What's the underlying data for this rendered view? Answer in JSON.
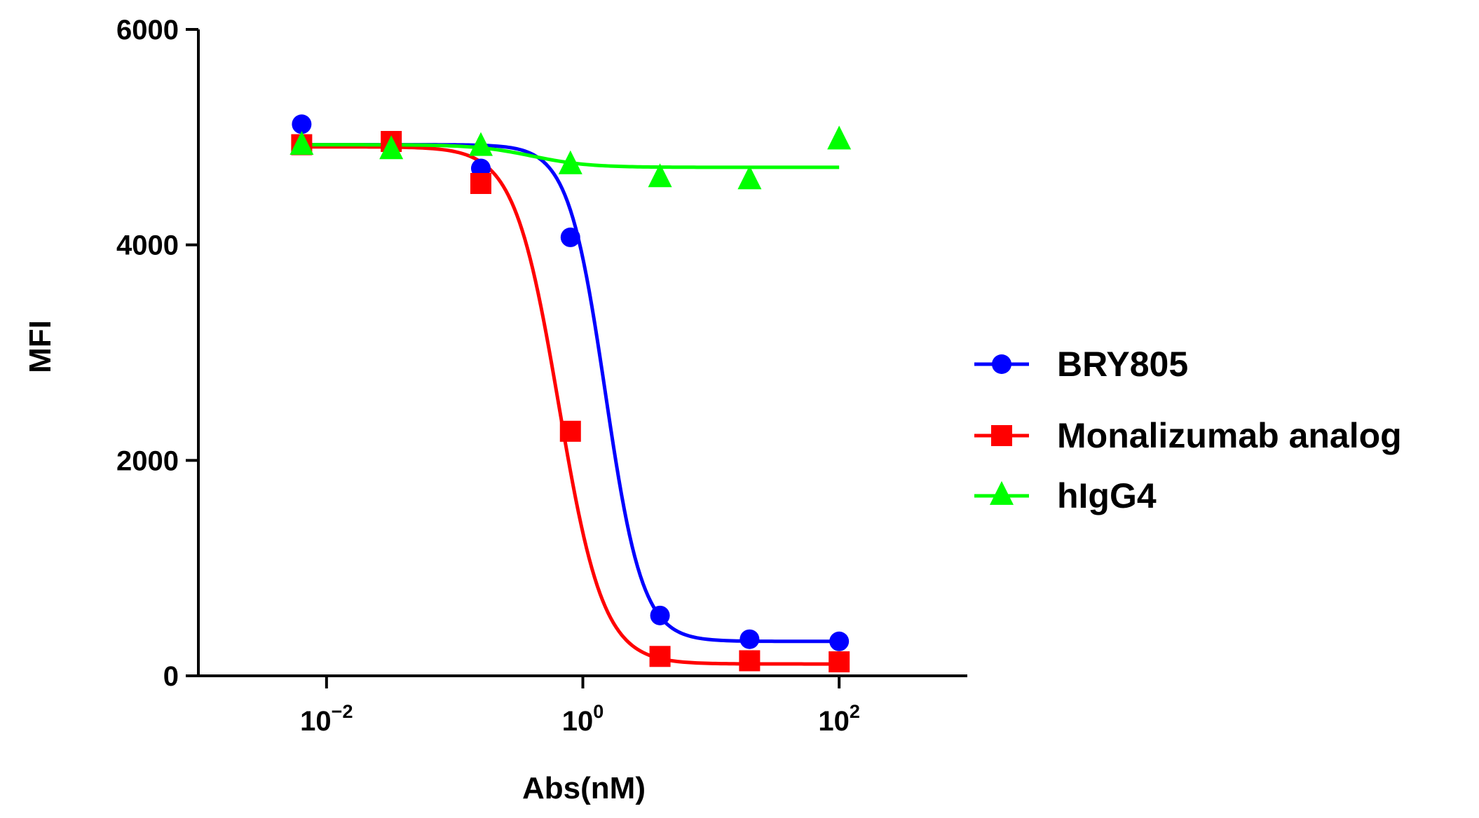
{
  "chart_data": {
    "type": "line",
    "xlabel": "Abs(nM)",
    "ylabel": "MFI",
    "xscale": "log",
    "xlim": [
      0.001,
      1000
    ],
    "ylim": [
      0,
      6000
    ],
    "x_ticks": [
      {
        "value": 0.01,
        "base": "10",
        "exp": "−2"
      },
      {
        "value": 1,
        "base": "10",
        "exp": "0"
      },
      {
        "value": 100,
        "base": "10",
        "exp": "2"
      }
    ],
    "y_ticks": [
      {
        "value": 0,
        "label": "0"
      },
      {
        "value": 2000,
        "label": "2000"
      },
      {
        "value": 4000,
        "label": "4000"
      },
      {
        "value": 6000,
        "label": "6000"
      }
    ],
    "legend_position": "right",
    "series": [
      {
        "name": "BRY805",
        "color": "#0000ff",
        "marker": "circle",
        "x": [
          0.0064,
          0.032,
          0.16,
          0.8,
          4,
          20,
          100
        ],
        "y": [
          5120,
          4950,
          4710,
          4070,
          560,
          340,
          320
        ],
        "fit": {
          "top": 4930,
          "bottom": 320,
          "ec50": 1.5,
          "hill": 3.0
        }
      },
      {
        "name": "Monalizumab analog",
        "color": "#ff0000",
        "marker": "square",
        "x": [
          0.0064,
          0.032,
          0.16,
          0.8,
          4,
          20,
          100
        ],
        "y": [
          4930,
          4960,
          4570,
          2270,
          180,
          140,
          130
        ],
        "fit": {
          "top": 4910,
          "bottom": 110,
          "ec50": 0.65,
          "hill": 2.5
        }
      },
      {
        "name": "hIgG4",
        "color": "#00ff00",
        "marker": "triangle",
        "x": [
          0.0064,
          0.032,
          0.16,
          0.8,
          4,
          20,
          100
        ],
        "y": [
          4920,
          4880,
          4910,
          4740,
          4620,
          4600,
          4970
        ],
        "fit": {
          "top": 4930,
          "bottom": 4720,
          "ec50": 0.4,
          "hill": 2.0
        }
      }
    ]
  }
}
